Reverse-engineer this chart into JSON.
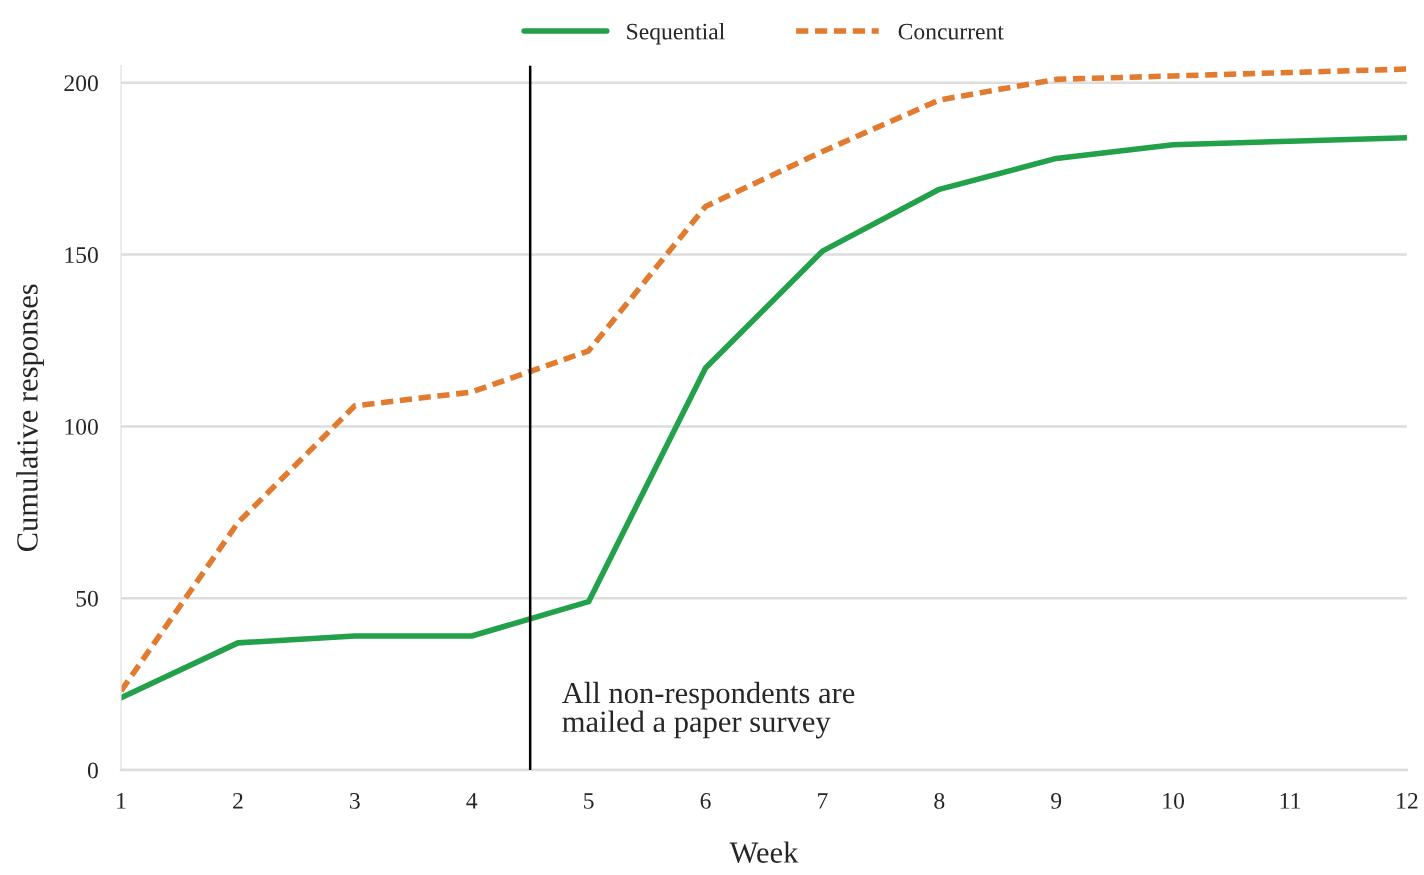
{
  "chart_data": {
    "type": "line",
    "xlabel": "Week",
    "ylabel": "Cumulative responses",
    "x": [
      1,
      2,
      3,
      4,
      5,
      6,
      7,
      8,
      9,
      10,
      11,
      12
    ],
    "series": [
      {
        "name": "Sequential",
        "color": "#22a04a",
        "line_style": "solid",
        "values": [
          21,
          37,
          39,
          39,
          49,
          117,
          151,
          169,
          178,
          182,
          183,
          184
        ]
      },
      {
        "name": "Concurrent",
        "color": "#e07b30",
        "line_style": "dashed",
        "values": [
          23,
          72,
          106,
          110,
          122,
          164,
          180,
          195,
          201,
          202,
          203,
          204
        ]
      }
    ],
    "xlim": [
      1,
      12
    ],
    "xticks": [
      1,
      2,
      3,
      4,
      5,
      6,
      7,
      8,
      9,
      10,
      11,
      12
    ],
    "ylim": [
      0,
      205
    ],
    "yticks": [
      0,
      50,
      100,
      150,
      200
    ],
    "grid": "y",
    "legend": "top",
    "marker": "none",
    "ref_lines": [
      {
        "axis": "x",
        "value": 4.5,
        "label": "All non-respondents are\nmailed a paper survey",
        "color": "#000000"
      }
    ]
  }
}
